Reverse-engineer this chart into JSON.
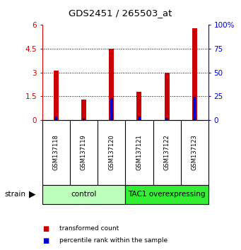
{
  "title": "GDS2451 / 265503_at",
  "samples": [
    "GSM137118",
    "GSM137119",
    "GSM137120",
    "GSM137121",
    "GSM137122",
    "GSM137123"
  ],
  "red_values": [
    3.1,
    1.3,
    4.5,
    1.8,
    3.0,
    5.8
  ],
  "blue_percentile": [
    3.5,
    2.0,
    23.0,
    3.5,
    2.5,
    24.5
  ],
  "ylim_left": [
    0,
    6
  ],
  "ylim_right": [
    0,
    100
  ],
  "yticks_left": [
    0,
    1.5,
    3.0,
    4.5,
    6.0
  ],
  "yticks_right": [
    0,
    25,
    50,
    75,
    100
  ],
  "ytick_labels_left": [
    "0",
    "1.5",
    "3",
    "4.5",
    "6"
  ],
  "ytick_labels_right": [
    "0",
    "25",
    "50",
    "75",
    "100%"
  ],
  "groups": [
    {
      "label": "control",
      "indices": [
        0,
        1,
        2
      ],
      "color": "#bbffbb"
    },
    {
      "label": "TAC1 overexpressing",
      "indices": [
        3,
        4,
        5
      ],
      "color": "#33ee33"
    }
  ],
  "red_bar_width": 0.18,
  "blue_bar_width": 0.1,
  "red_color": "#cc0000",
  "blue_color": "#0000cc",
  "sample_bg_color": "#cccccc",
  "left_tick_color": "#cc0000",
  "right_tick_color": "#0000cc",
  "grid_yticks": [
    1.5,
    3.0,
    4.5
  ]
}
